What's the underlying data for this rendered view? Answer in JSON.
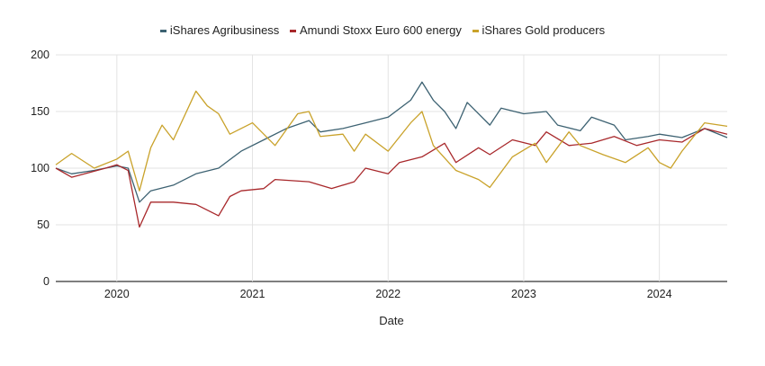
{
  "chart_data": {
    "type": "line",
    "title": "",
    "xlabel": "Date",
    "ylabel": "",
    "ylim": [
      0,
      200
    ],
    "xlim": [
      "2019-07",
      "2024-07"
    ],
    "yticks": [
      "0",
      "50",
      "100",
      "150",
      "200"
    ],
    "xticks": [
      "2020",
      "2021",
      "2022",
      "2023",
      "2024"
    ],
    "grid": true,
    "legend_position": "top",
    "series": [
      {
        "name": "iShares Agribusiness",
        "color": "#3d6272",
        "points": [
          [
            "2019-07",
            100
          ],
          [
            "2019-09",
            95
          ],
          [
            "2019-11",
            98
          ],
          [
            "2020-01",
            102
          ],
          [
            "2020-02",
            100
          ],
          [
            "2020-03",
            70
          ],
          [
            "2020-04",
            80
          ],
          [
            "2020-06",
            85
          ],
          [
            "2020-08",
            95
          ],
          [
            "2020-10",
            100
          ],
          [
            "2020-12",
            115
          ],
          [
            "2021-02",
            125
          ],
          [
            "2021-04",
            135
          ],
          [
            "2021-06",
            142
          ],
          [
            "2021-07",
            132
          ],
          [
            "2021-09",
            135
          ],
          [
            "2021-11",
            140
          ],
          [
            "2022-01",
            145
          ],
          [
            "2022-03",
            160
          ],
          [
            "2022-04",
            176
          ],
          [
            "2022-05",
            160
          ],
          [
            "2022-06",
            150
          ],
          [
            "2022-07",
            135
          ],
          [
            "2022-08",
            158
          ],
          [
            "2022-10",
            138
          ],
          [
            "2022-11",
            153
          ],
          [
            "2023-01",
            148
          ],
          [
            "2023-03",
            150
          ],
          [
            "2023-04",
            138
          ],
          [
            "2023-06",
            133
          ],
          [
            "2023-07",
            145
          ],
          [
            "2023-09",
            138
          ],
          [
            "2023-10",
            125
          ],
          [
            "2023-12",
            128
          ],
          [
            "2024-01",
            130
          ],
          [
            "2024-03",
            127
          ],
          [
            "2024-05",
            135
          ],
          [
            "2024-07",
            127
          ]
        ]
      },
      {
        "name": "Amundi Stoxx Euro 600 energy",
        "color": "#a8282b",
        "points": [
          [
            "2019-07",
            100
          ],
          [
            "2019-09",
            92
          ],
          [
            "2019-12",
            100
          ],
          [
            "2020-01",
            103
          ],
          [
            "2020-02",
            98
          ],
          [
            "2020-03",
            48
          ],
          [
            "2020-04",
            70
          ],
          [
            "2020-06",
            70
          ],
          [
            "2020-08",
            68
          ],
          [
            "2020-10",
            58
          ],
          [
            "2020-11",
            75
          ],
          [
            "2020-12",
            80
          ],
          [
            "2021-02",
            82
          ],
          [
            "2021-03",
            90
          ],
          [
            "2021-06",
            88
          ],
          [
            "2021-08",
            82
          ],
          [
            "2021-10",
            88
          ],
          [
            "2021-11",
            100
          ],
          [
            "2022-01",
            95
          ],
          [
            "2022-02",
            105
          ],
          [
            "2022-04",
            110
          ],
          [
            "2022-06",
            122
          ],
          [
            "2022-07",
            105
          ],
          [
            "2022-09",
            118
          ],
          [
            "2022-10",
            112
          ],
          [
            "2022-12",
            125
          ],
          [
            "2023-02",
            120
          ],
          [
            "2023-03",
            132
          ],
          [
            "2023-05",
            120
          ],
          [
            "2023-07",
            122
          ],
          [
            "2023-09",
            128
          ],
          [
            "2023-11",
            120
          ],
          [
            "2024-01",
            125
          ],
          [
            "2024-03",
            123
          ],
          [
            "2024-05",
            135
          ],
          [
            "2024-07",
            130
          ]
        ]
      },
      {
        "name": "iShares Gold producers",
        "color": "#c9a22a",
        "points": [
          [
            "2019-07",
            103
          ],
          [
            "2019-09",
            113
          ],
          [
            "2019-11",
            100
          ],
          [
            "2020-01",
            108
          ],
          [
            "2020-02",
            115
          ],
          [
            "2020-03",
            80
          ],
          [
            "2020-04",
            118
          ],
          [
            "2020-05",
            138
          ],
          [
            "2020-06",
            125
          ],
          [
            "2020-08",
            168
          ],
          [
            "2020-09",
            155
          ],
          [
            "2020-10",
            148
          ],
          [
            "2020-11",
            130
          ],
          [
            "2021-01",
            140
          ],
          [
            "2021-03",
            120
          ],
          [
            "2021-05",
            148
          ],
          [
            "2021-06",
            150
          ],
          [
            "2021-07",
            128
          ],
          [
            "2021-09",
            130
          ],
          [
            "2021-10",
            115
          ],
          [
            "2021-11",
            130
          ],
          [
            "2022-01",
            115
          ],
          [
            "2022-03",
            140
          ],
          [
            "2022-04",
            150
          ],
          [
            "2022-05",
            120
          ],
          [
            "2022-07",
            98
          ],
          [
            "2022-09",
            90
          ],
          [
            "2022-10",
            83
          ],
          [
            "2022-12",
            110
          ],
          [
            "2023-02",
            122
          ],
          [
            "2023-03",
            105
          ],
          [
            "2023-05",
            132
          ],
          [
            "2023-06",
            120
          ],
          [
            "2023-08",
            112
          ],
          [
            "2023-10",
            105
          ],
          [
            "2023-12",
            118
          ],
          [
            "2024-01",
            105
          ],
          [
            "2024-02",
            100
          ],
          [
            "2024-03",
            115
          ],
          [
            "2024-05",
            140
          ],
          [
            "2024-07",
            137
          ]
        ]
      }
    ]
  }
}
